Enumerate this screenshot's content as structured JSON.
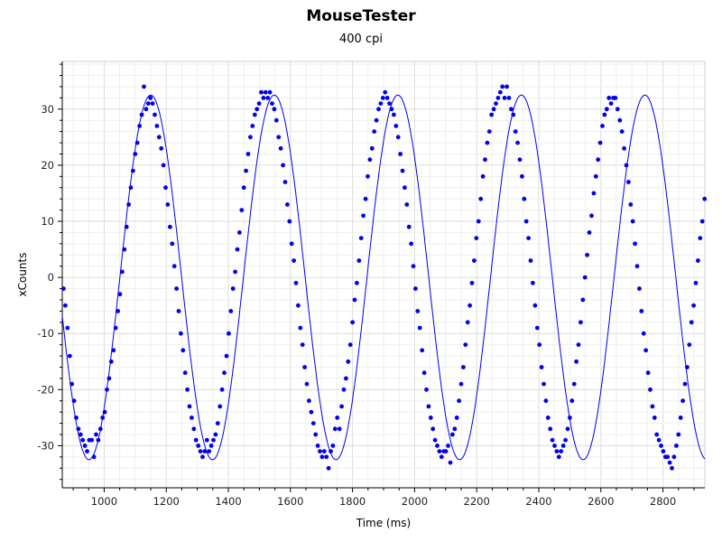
{
  "chart_data": {
    "type": "scatter",
    "title": "MouseTester",
    "subtitle": "400 cpi",
    "xlabel": "Time (ms)",
    "ylabel": "xCounts",
    "xlim": [
      865,
      2935
    ],
    "ylim": [
      -37.5,
      38.5
    ],
    "xticks": [
      1000,
      1200,
      1400,
      1600,
      1800,
      2000,
      2200,
      2400,
      2600,
      2800
    ],
    "yticks": [
      -30,
      -20,
      -10,
      0,
      10,
      20,
      30
    ],
    "grid": true,
    "colors": {
      "series": "#0000ee",
      "grid": "#e6e6e6",
      "axis": "#000000"
    },
    "series": [
      {
        "style": "points + smoothed line",
        "model": {
          "amplitude": 32.5,
          "period_ms": 398,
          "first_peak_ms": 1150,
          "x_start": 865,
          "x_end": 2935
        },
        "points": [
          [
            869,
            -2
          ],
          [
            875,
            -5
          ],
          [
            882,
            -9
          ],
          [
            889,
            -14
          ],
          [
            896,
            -19
          ],
          [
            903,
            -22
          ],
          [
            910,
            -25
          ],
          [
            917,
            -27
          ],
          [
            924,
            -28
          ],
          [
            931,
            -29
          ],
          [
            938,
            -30
          ],
          [
            945,
            -31
          ],
          [
            952,
            -29
          ],
          [
            960,
            -29
          ],
          [
            967,
            -32
          ],
          [
            974,
            -28
          ],
          [
            981,
            -29
          ],
          [
            988,
            -27
          ],
          [
            995,
            -25
          ],
          [
            1002,
            -24
          ],
          [
            1009,
            -20
          ],
          [
            1016,
            -18
          ],
          [
            1023,
            -15
          ],
          [
            1030,
            -13
          ],
          [
            1037,
            -9
          ],
          [
            1044,
            -6
          ],
          [
            1051,
            -3
          ],
          [
            1058,
            1
          ],
          [
            1065,
            5
          ],
          [
            1072,
            9
          ],
          [
            1079,
            13
          ],
          [
            1086,
            16
          ],
          [
            1093,
            19
          ],
          [
            1100,
            22
          ],
          [
            1107,
            24
          ],
          [
            1114,
            27
          ],
          [
            1121,
            29
          ],
          [
            1128,
            34
          ],
          [
            1135,
            30
          ],
          [
            1142,
            31
          ],
          [
            1149,
            32
          ],
          [
            1156,
            31
          ],
          [
            1163,
            29
          ],
          [
            1170,
            27
          ],
          [
            1177,
            25
          ],
          [
            1184,
            23
          ],
          [
            1191,
            20
          ],
          [
            1198,
            16
          ],
          [
            1205,
            13
          ],
          [
            1212,
            9
          ],
          [
            1219,
            6
          ],
          [
            1226,
            2
          ],
          [
            1233,
            -2
          ],
          [
            1240,
            -6
          ],
          [
            1247,
            -10
          ],
          [
            1254,
            -13
          ],
          [
            1261,
            -17
          ],
          [
            1268,
            -20
          ],
          [
            1275,
            -23
          ],
          [
            1282,
            -25
          ],
          [
            1289,
            -27
          ],
          [
            1296,
            -29
          ],
          [
            1303,
            -30
          ],
          [
            1310,
            -31
          ],
          [
            1317,
            -32
          ],
          [
            1324,
            -31
          ],
          [
            1331,
            -29
          ],
          [
            1338,
            -31
          ],
          [
            1345,
            -30
          ],
          [
            1352,
            -29
          ],
          [
            1359,
            -28
          ],
          [
            1366,
            -26
          ],
          [
            1373,
            -23
          ],
          [
            1380,
            -20
          ],
          [
            1387,
            -17
          ],
          [
            1394,
            -14
          ],
          [
            1401,
            -10
          ],
          [
            1408,
            -6
          ],
          [
            1415,
            -2
          ],
          [
            1422,
            1
          ],
          [
            1429,
            5
          ],
          [
            1436,
            8
          ],
          [
            1443,
            12
          ],
          [
            1450,
            16
          ],
          [
            1457,
            19
          ],
          [
            1464,
            22
          ],
          [
            1471,
            25
          ],
          [
            1478,
            27
          ],
          [
            1485,
            29
          ],
          [
            1492,
            30
          ],
          [
            1499,
            31
          ],
          [
            1506,
            33
          ],
          [
            1513,
            32
          ],
          [
            1520,
            33
          ],
          [
            1527,
            32
          ],
          [
            1534,
            33
          ],
          [
            1541,
            31
          ],
          [
            1548,
            30
          ],
          [
            1555,
            28
          ],
          [
            1562,
            25
          ],
          [
            1569,
            23
          ],
          [
            1576,
            20
          ],
          [
            1583,
            17
          ],
          [
            1590,
            13
          ],
          [
            1597,
            10
          ],
          [
            1604,
            6
          ],
          [
            1611,
            3
          ],
          [
            1618,
            -1
          ],
          [
            1625,
            -5
          ],
          [
            1632,
            -9
          ],
          [
            1639,
            -12
          ],
          [
            1646,
            -16
          ],
          [
            1653,
            -19
          ],
          [
            1660,
            -22
          ],
          [
            1667,
            -24
          ],
          [
            1674,
            -26
          ],
          [
            1681,
            -28
          ],
          [
            1688,
            -30
          ],
          [
            1695,
            -31
          ],
          [
            1702,
            -32
          ],
          [
            1709,
            -31
          ],
          [
            1716,
            -32
          ],
          [
            1723,
            -34
          ],
          [
            1730,
            -31
          ],
          [
            1737,
            -30
          ],
          [
            1744,
            -27
          ],
          [
            1751,
            -25
          ],
          [
            1758,
            -27
          ],
          [
            1765,
            -23
          ],
          [
            1772,
            -20
          ],
          [
            1779,
            -18
          ],
          [
            1786,
            -15
          ],
          [
            1793,
            -12
          ],
          [
            1800,
            -8
          ],
          [
            1807,
            -4
          ],
          [
            1814,
            -1
          ],
          [
            1821,
            3
          ],
          [
            1828,
            7
          ],
          [
            1835,
            11
          ],
          [
            1842,
            14
          ],
          [
            1849,
            18
          ],
          [
            1856,
            21
          ],
          [
            1863,
            23
          ],
          [
            1870,
            26
          ],
          [
            1877,
            28
          ],
          [
            1884,
            30
          ],
          [
            1891,
            31
          ],
          [
            1898,
            32
          ],
          [
            1905,
            33
          ],
          [
            1912,
            32
          ],
          [
            1919,
            31
          ],
          [
            1926,
            30
          ],
          [
            1933,
            29
          ],
          [
            1940,
            27
          ],
          [
            1947,
            25
          ],
          [
            1954,
            22
          ],
          [
            1961,
            19
          ],
          [
            1968,
            16
          ],
          [
            1975,
            13
          ],
          [
            1982,
            9
          ],
          [
            1989,
            6
          ],
          [
            1996,
            2
          ],
          [
            2003,
            -2
          ],
          [
            2010,
            -6
          ],
          [
            2017,
            -9
          ],
          [
            2024,
            -13
          ],
          [
            2031,
            -17
          ],
          [
            2038,
            -20
          ],
          [
            2045,
            -23
          ],
          [
            2052,
            -25
          ],
          [
            2059,
            -27
          ],
          [
            2066,
            -29
          ],
          [
            2073,
            -30
          ],
          [
            2080,
            -31
          ],
          [
            2087,
            -32
          ],
          [
            2094,
            -31
          ],
          [
            2101,
            -31
          ],
          [
            2108,
            -30
          ],
          [
            2115,
            -33
          ],
          [
            2122,
            -28
          ],
          [
            2129,
            -27
          ],
          [
            2136,
            -25
          ],
          [
            2143,
            -22
          ],
          [
            2150,
            -19
          ],
          [
            2157,
            -16
          ],
          [
            2164,
            -12
          ],
          [
            2171,
            -8
          ],
          [
            2178,
            -5
          ],
          [
            2185,
            -1
          ],
          [
            2192,
            3
          ],
          [
            2199,
            7
          ],
          [
            2206,
            10
          ],
          [
            2213,
            14
          ],
          [
            2220,
            18
          ],
          [
            2227,
            21
          ],
          [
            2234,
            24
          ],
          [
            2241,
            26
          ],
          [
            2248,
            29
          ],
          [
            2255,
            30
          ],
          [
            2262,
            31
          ],
          [
            2269,
            32
          ],
          [
            2276,
            33
          ],
          [
            2283,
            34
          ],
          [
            2290,
            32
          ],
          [
            2297,
            34
          ],
          [
            2304,
            32
          ],
          [
            2311,
            30
          ],
          [
            2318,
            29
          ],
          [
            2325,
            26
          ],
          [
            2332,
            24
          ],
          [
            2339,
            21
          ],
          [
            2346,
            18
          ],
          [
            2353,
            14
          ],
          [
            2360,
            10
          ],
          [
            2367,
            7
          ],
          [
            2374,
            3
          ],
          [
            2381,
            -1
          ],
          [
            2388,
            -5
          ],
          [
            2395,
            -9
          ],
          [
            2402,
            -12
          ],
          [
            2409,
            -16
          ],
          [
            2416,
            -19
          ],
          [
            2423,
            -22
          ],
          [
            2430,
            -25
          ],
          [
            2437,
            -27
          ],
          [
            2444,
            -29
          ],
          [
            2451,
            -30
          ],
          [
            2458,
            -31
          ],
          [
            2465,
            -32
          ],
          [
            2472,
            -31
          ],
          [
            2479,
            -30
          ],
          [
            2486,
            -29
          ],
          [
            2493,
            -27
          ],
          [
            2500,
            -25
          ],
          [
            2507,
            -22
          ],
          [
            2514,
            -19
          ],
          [
            2521,
            -15
          ],
          [
            2528,
            -12
          ],
          [
            2535,
            -8
          ],
          [
            2542,
            -4
          ],
          [
            2549,
            0
          ],
          [
            2556,
            4
          ],
          [
            2563,
            8
          ],
          [
            2570,
            11
          ],
          [
            2577,
            15
          ],
          [
            2584,
            18
          ],
          [
            2591,
            21
          ],
          [
            2598,
            24
          ],
          [
            2605,
            27
          ],
          [
            2612,
            29
          ],
          [
            2619,
            30
          ],
          [
            2626,
            32
          ],
          [
            2633,
            31
          ],
          [
            2640,
            32
          ],
          [
            2647,
            32
          ],
          [
            2654,
            30
          ],
          [
            2661,
            28
          ],
          [
            2668,
            26
          ],
          [
            2675,
            23
          ],
          [
            2682,
            20
          ],
          [
            2689,
            17
          ],
          [
            2696,
            13
          ],
          [
            2703,
            10
          ],
          [
            2710,
            6
          ],
          [
            2717,
            2
          ],
          [
            2724,
            -2
          ],
          [
            2731,
            -6
          ],
          [
            2738,
            -10
          ],
          [
            2745,
            -13
          ],
          [
            2752,
            -17
          ],
          [
            2759,
            -20
          ],
          [
            2766,
            -23
          ],
          [
            2773,
            -25
          ],
          [
            2780,
            -28
          ],
          [
            2787,
            -29
          ],
          [
            2794,
            -30
          ],
          [
            2801,
            -31
          ],
          [
            2808,
            -32
          ],
          [
            2815,
            -32
          ],
          [
            2822,
            -33
          ],
          [
            2829,
            -34
          ],
          [
            2836,
            -32
          ],
          [
            2843,
            -30
          ],
          [
            2850,
            -28
          ],
          [
            2857,
            -25
          ],
          [
            2864,
            -22
          ],
          [
            2871,
            -19
          ],
          [
            2878,
            -16
          ],
          [
            2885,
            -12
          ],
          [
            2892,
            -8
          ],
          [
            2899,
            -5
          ],
          [
            2906,
            -1
          ],
          [
            2913,
            3
          ],
          [
            2920,
            7
          ],
          [
            2927,
            10
          ],
          [
            2934,
            14
          ]
        ]
      }
    ]
  }
}
